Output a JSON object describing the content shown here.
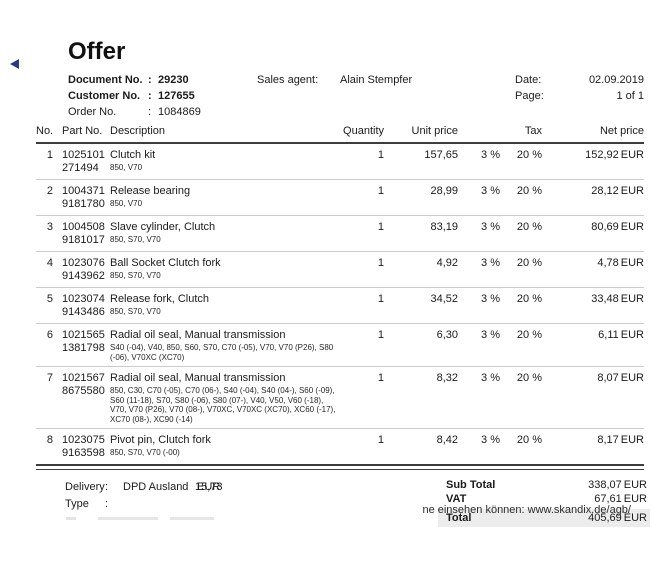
{
  "page": {
    "title": "Offer",
    "bottom_note": "ne einsehen können: www.skandix.de/agb/"
  },
  "meta": {
    "document_no_label": "Document No.",
    "document_no": "29230",
    "customer_no_label": "Customer No.",
    "customer_no": "127655",
    "order_no_label": "Order No.",
    "order_no": "1084869",
    "colon": ":",
    "sales_agent_label": "Sales agent:",
    "sales_agent": "Alain Stempfer",
    "date_label": "Date:",
    "date": "02.09.2019",
    "page_label": "Page:",
    "page_value": "1 of 1"
  },
  "table": {
    "headers": {
      "no": "No.",
      "part_no": "Part No.",
      "description": "Description",
      "quantity": "Quantity",
      "unit_price": "Unit price",
      "tax": "Tax",
      "net_price": "Net price"
    },
    "rows": [
      {
        "no": "1",
        "part_no": "1025101",
        "part_no2": "271494",
        "description": "Clutch kit",
        "models": "850, V70",
        "quantity": "1",
        "unit_price": "157,65",
        "tax1": "3 %",
        "tax2": "20 %",
        "net_price": "152,92",
        "currency": "EUR"
      },
      {
        "no": "2",
        "part_no": "1004371",
        "part_no2": "9181780",
        "description": "Release bearing",
        "models": "850, V70",
        "quantity": "1",
        "unit_price": "28,99",
        "tax1": "3 %",
        "tax2": "20 %",
        "net_price": "28,12",
        "currency": "EUR"
      },
      {
        "no": "3",
        "part_no": "1004508",
        "part_no2": "9181017",
        "description": "Slave cylinder, Clutch",
        "models": "850, S70, V70",
        "quantity": "1",
        "unit_price": "83,19",
        "tax1": "3 %",
        "tax2": "20 %",
        "net_price": "80,69",
        "currency": "EUR"
      },
      {
        "no": "4",
        "part_no": "1023076",
        "part_no2": "9143962",
        "description": "Ball Socket Clutch fork",
        "models": "850, S70, V70",
        "quantity": "1",
        "unit_price": "4,92",
        "tax1": "3 %",
        "tax2": "20 %",
        "net_price": "4,78",
        "currency": "EUR"
      },
      {
        "no": "5",
        "part_no": "1023074",
        "part_no2": "9143486",
        "description": "Release fork, Clutch",
        "models": "850, S70, V70",
        "quantity": "1",
        "unit_price": "34,52",
        "tax1": "3 %",
        "tax2": "20 %",
        "net_price": "33,48",
        "currency": "EUR"
      },
      {
        "no": "6",
        "part_no": "1021565",
        "part_no2": "1381798",
        "description": "Radial oil seal, Manual transmission",
        "models": "S40 (-04), V40, 850, S60, S70, C70 (-05), V70, V70 (P26), S80 (-06), V70XC (XC70)",
        "quantity": "1",
        "unit_price": "6,30",
        "tax1": "3 %",
        "tax2": "20 %",
        "net_price": "6,11",
        "currency": "EUR"
      },
      {
        "no": "7",
        "part_no": "1021567",
        "part_no2": "8675580",
        "description": "Radial oil seal, Manual transmission",
        "models": "850, C30, C70 (-05), C70 (06-), S40 (-04), S40 (04-), S60 (-09), S60 (11-18), S70, S80 (-06), S80 (07-), V40, V50, V60 (-18), V70, V70 (P26), V70 (08-), V70XC, V70XC (XC70), XC60 (-17), XC70 (08-), XC90 (-14)",
        "quantity": "1",
        "unit_price": "8,32",
        "tax1": "3 %",
        "tax2": "20 %",
        "net_price": "8,07",
        "currency": "EUR"
      },
      {
        "no": "8",
        "part_no": "1023075",
        "part_no2": "9163598",
        "description": "Pivot pin, Clutch fork",
        "models": "850, S70, V70 (-00)",
        "quantity": "1",
        "unit_price": "8,42",
        "tax1": "3 %",
        "tax2": "20 %",
        "net_price": "8,17",
        "currency": "EUR"
      }
    ]
  },
  "footer": {
    "delivery_label": "Delivery",
    "colon": ":",
    "delivery_value": "DPD Ausland",
    "delivery_price": "15,73",
    "delivery_currency": "EUR",
    "type_label": "Type",
    "subtotal_label": "Sub Total",
    "subtotal": "338,07",
    "subtotal_currency": "EUR",
    "vat_label": "VAT",
    "vat": "67,61",
    "vat_currency": "EUR",
    "total_label": "Total",
    "total": "405,69",
    "total_currency": "EUR"
  }
}
